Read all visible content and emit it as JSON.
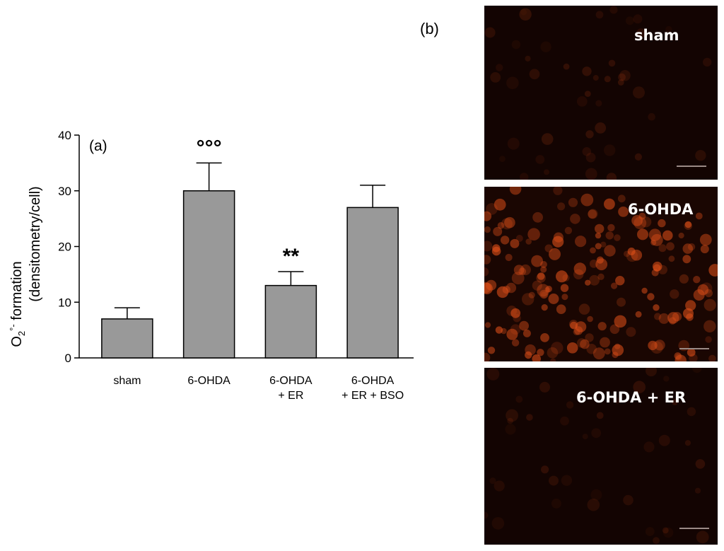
{
  "chart_data": {
    "type": "bar",
    "panel_label": "(a)",
    "ylabel_main": "O",
    "ylabel_sub": "2",
    "ylabel_sup": "°-",
    "ylabel_tail": " formation",
    "ylabel_line2": "(densitometry/cell)",
    "ylim": [
      0,
      40
    ],
    "yticks": [
      0,
      10,
      20,
      30,
      40
    ],
    "categories": [
      [
        "sham"
      ],
      [
        "6-OHDA"
      ],
      [
        "6-OHDA",
        "+ ER"
      ],
      [
        "6-OHDA",
        "+ ER + BSO"
      ]
    ],
    "values": [
      7,
      30,
      13,
      27
    ],
    "error_upper": [
      9,
      35,
      15.5,
      31
    ],
    "significance": [
      "",
      "°°°",
      "**",
      ""
    ],
    "bar_color": "#999999",
    "grid": false
  },
  "panel_b": {
    "label": "(b)",
    "images": [
      {
        "label": "sham",
        "fluorescence": "low"
      },
      {
        "label": "6-OHDA",
        "fluorescence": "high"
      },
      {
        "label": "6-OHDA + ER",
        "fluorescence": "low"
      }
    ]
  }
}
